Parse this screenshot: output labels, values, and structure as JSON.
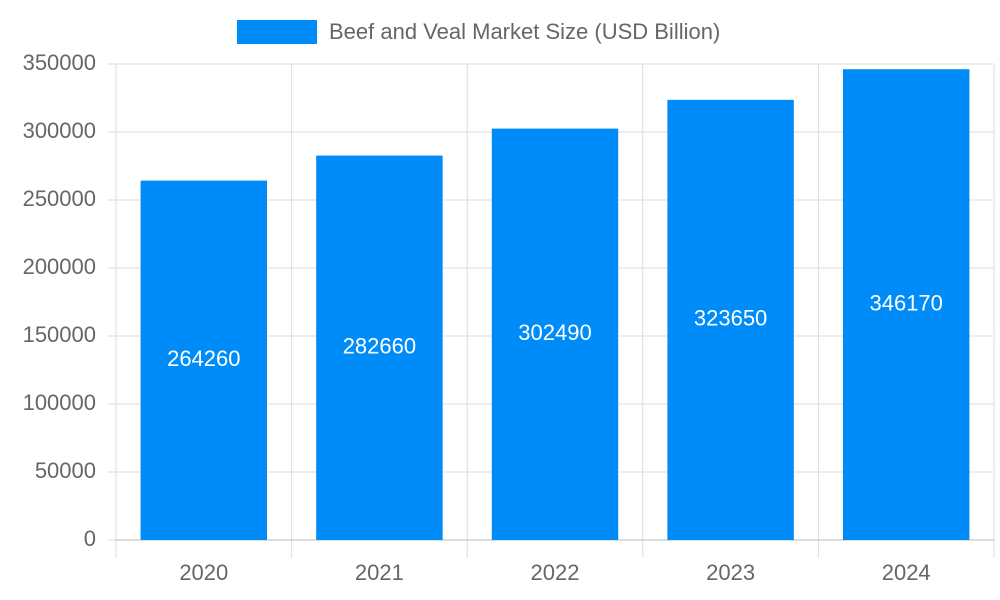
{
  "chart_data": {
    "type": "bar",
    "categories": [
      "2020",
      "2021",
      "2022",
      "2023",
      "2024"
    ],
    "series": [
      {
        "name": "Beef and Veal Market Size (USD Billion)",
        "color": "#008cf8",
        "values": [
          264260,
          282660,
          302490,
          323650,
          346170
        ]
      }
    ],
    "ylim": [
      0,
      350000
    ],
    "yticks": [
      0,
      50000,
      100000,
      150000,
      200000,
      250000,
      300000,
      350000
    ],
    "grid": true,
    "legend": "top",
    "data_labels": true
  }
}
